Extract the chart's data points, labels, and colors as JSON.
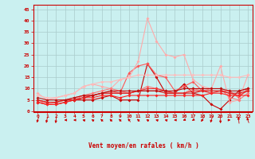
{
  "xlabel": "Vent moyen/en rafales ( km/h )",
  "xlim": [
    -0.5,
    23.5
  ],
  "ylim": [
    0,
    47
  ],
  "yticks": [
    0,
    5,
    10,
    15,
    20,
    25,
    30,
    35,
    40,
    45
  ],
  "xticks": [
    0,
    1,
    2,
    3,
    4,
    5,
    6,
    7,
    8,
    9,
    10,
    11,
    12,
    13,
    14,
    15,
    16,
    17,
    18,
    19,
    20,
    21,
    22,
    23
  ],
  "bg_color": "#caf0f0",
  "grid_color": "#aacccc",
  "text_color": "#cc0000",
  "spine_color": "#cc0000",
  "series": [
    {
      "color": "#cc0000",
      "lw": 0.8,
      "ms": 2.0,
      "data": [
        4,
        3,
        3,
        4,
        5,
        5,
        5,
        6,
        7,
        5,
        5,
        5,
        21,
        15,
        8,
        8,
        12,
        8,
        7,
        3,
        1,
        5,
        9,
        10
      ]
    },
    {
      "color": "#ff5555",
      "lw": 0.8,
      "ms": 2.0,
      "data": [
        5,
        4,
        4,
        5,
        6,
        7,
        7,
        8,
        9,
        8,
        17,
        20,
        21,
        16,
        15,
        9,
        11,
        13,
        9,
        9,
        9,
        9,
        6,
        10
      ]
    },
    {
      "color": "#ffaaaa",
      "lw": 0.8,
      "ms": 2.0,
      "data": [
        8,
        5,
        6,
        7,
        8,
        11,
        12,
        11,
        10,
        14,
        15,
        22,
        41,
        31,
        25,
        24,
        25,
        14,
        11,
        10,
        20,
        4,
        5,
        16
      ]
    },
    {
      "color": "#ff7777",
      "lw": 0.8,
      "ms": 2.0,
      "data": [
        5,
        3,
        4,
        5,
        5,
        7,
        8,
        9,
        10,
        9,
        8,
        9,
        11,
        10,
        9,
        8,
        8,
        10,
        9,
        10,
        10,
        6,
        5,
        8
      ]
    },
    {
      "color": "#ee3333",
      "lw": 0.8,
      "ms": 2.0,
      "data": [
        5,
        4,
        4,
        5,
        5,
        6,
        7,
        8,
        8,
        8,
        8,
        9,
        10,
        10,
        9,
        8,
        8,
        9,
        9,
        8,
        9,
        8,
        7,
        9
      ]
    },
    {
      "color": "#ffbbbb",
      "lw": 0.8,
      "ms": 2.0,
      "data": [
        7,
        6,
        6,
        7,
        8,
        11,
        12,
        13,
        13,
        14,
        15,
        16,
        16,
        16,
        16,
        16,
        16,
        16,
        16,
        16,
        16,
        15,
        15,
        16
      ]
    },
    {
      "color": "#ff2222",
      "lw": 0.8,
      "ms": 2.0,
      "data": [
        4,
        3,
        3,
        4,
        5,
        6,
        6,
        7,
        7,
        6,
        7,
        7,
        7,
        7,
        7,
        7,
        7,
        7,
        7,
        8,
        8,
        7,
        7,
        7
      ]
    },
    {
      "color": "#dd2222",
      "lw": 0.8,
      "ms": 2.0,
      "data": [
        5,
        4,
        4,
        5,
        5,
        6,
        7,
        8,
        8,
        8,
        8,
        9,
        9,
        9,
        8,
        8,
        8,
        8,
        9,
        9,
        9,
        8,
        8,
        9
      ]
    },
    {
      "color": "#bb1111",
      "lw": 0.8,
      "ms": 2.0,
      "data": [
        6,
        5,
        5,
        5,
        6,
        7,
        7,
        8,
        9,
        9,
        9,
        9,
        9,
        9,
        9,
        9,
        10,
        10,
        10,
        10,
        10,
        9,
        9,
        10
      ]
    }
  ],
  "wind_dirs": [
    210,
    200,
    190,
    270,
    270,
    280,
    290,
    300,
    300,
    300,
    310,
    300,
    290,
    280,
    280,
    270,
    260,
    250,
    230,
    210,
    180,
    90,
    350,
    330
  ]
}
